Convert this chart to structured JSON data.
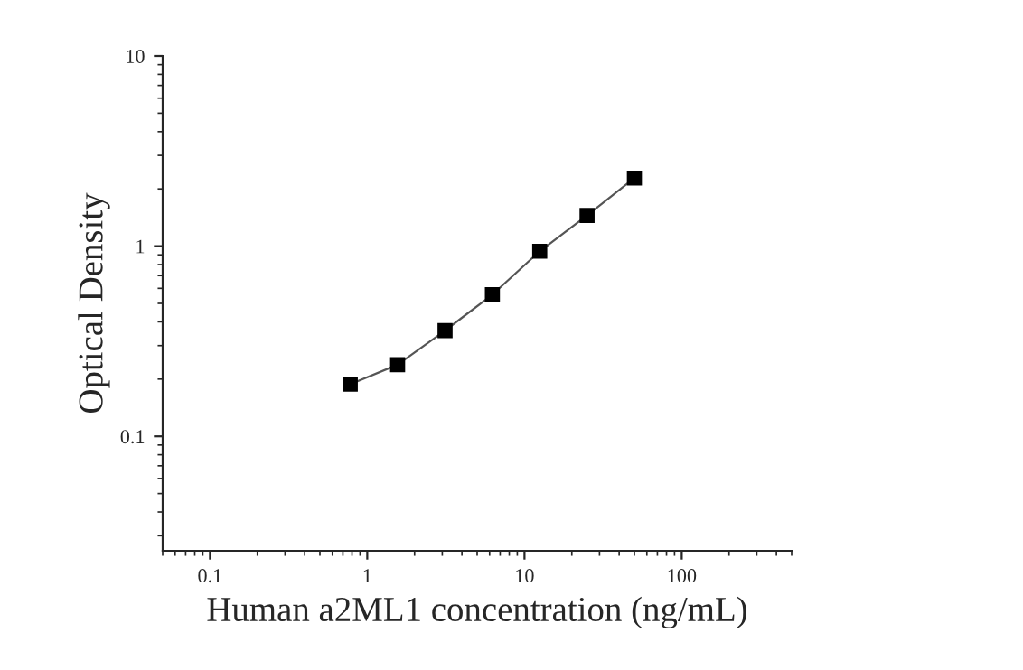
{
  "chart_data": {
    "type": "line",
    "xlabel": "Human a2ML1 concentration (ng/mL)",
    "ylabel": "Optical Density",
    "log": "xy",
    "marker": "square",
    "line_style": "solid",
    "grid": false,
    "legend": false,
    "xlim": [
      0.05,
      500
    ],
    "ylim": [
      0.025,
      10
    ],
    "xticks": [
      0.1,
      1,
      10,
      100
    ],
    "yticks": [
      0.1,
      1,
      10
    ],
    "x": [
      0.78,
      1.56,
      3.125,
      6.25,
      12.5,
      25,
      50
    ],
    "series": [
      {
        "color": "#000000",
        "values": [
          0.188,
          0.238,
          0.36,
          0.556,
          0.94,
          1.45,
          2.28
        ]
      }
    ]
  }
}
